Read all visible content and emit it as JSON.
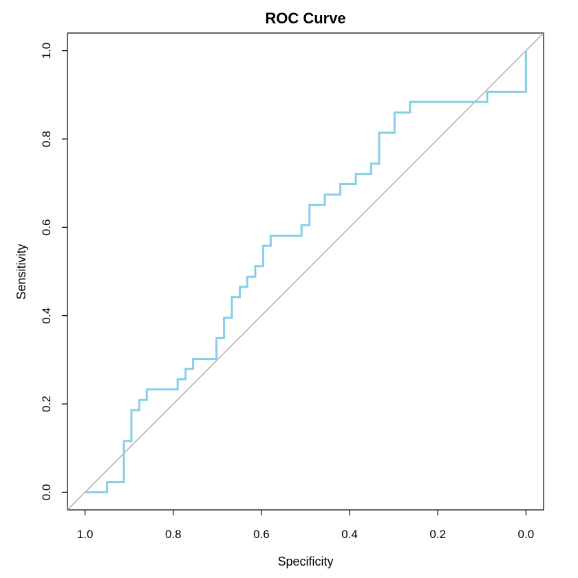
{
  "chart_data": {
    "type": "line",
    "title": "ROC Curve",
    "xlabel": "Specificity",
    "ylabel": "Sensitivity",
    "x_reversed": true,
    "xlim": [
      1.04,
      -0.04
    ],
    "ylim": [
      -0.04,
      1.04
    ],
    "xticks": [
      1.0,
      0.8,
      0.6,
      0.4,
      0.2,
      0.0
    ],
    "xtick_labels": [
      "1.0",
      "0.8",
      "0.6",
      "0.4",
      "0.2",
      "0.0"
    ],
    "yticks": [
      0.0,
      0.2,
      0.4,
      0.6,
      0.8,
      1.0
    ],
    "ytick_labels": [
      "0.0",
      "0.2",
      "0.4",
      "0.6",
      "0.8",
      "1.0"
    ],
    "grid": false,
    "diagonal_color": "#aaaaaa",
    "series": [
      {
        "color": "#87ceeb",
        "points": [
          [
            1.0,
            0.0
          ],
          [
            0.95,
            0.0
          ],
          [
            0.95,
            0.023
          ],
          [
            0.912,
            0.023
          ],
          [
            0.912,
            0.116
          ],
          [
            0.895,
            0.116
          ],
          [
            0.895,
            0.186
          ],
          [
            0.877,
            0.186
          ],
          [
            0.877,
            0.209
          ],
          [
            0.86,
            0.209
          ],
          [
            0.86,
            0.233
          ],
          [
            0.79,
            0.233
          ],
          [
            0.79,
            0.256
          ],
          [
            0.772,
            0.256
          ],
          [
            0.772,
            0.279
          ],
          [
            0.755,
            0.279
          ],
          [
            0.755,
            0.302
          ],
          [
            0.702,
            0.302
          ],
          [
            0.702,
            0.349
          ],
          [
            0.685,
            0.349
          ],
          [
            0.685,
            0.395
          ],
          [
            0.667,
            0.395
          ],
          [
            0.667,
            0.442
          ],
          [
            0.649,
            0.442
          ],
          [
            0.649,
            0.465
          ],
          [
            0.632,
            0.465
          ],
          [
            0.632,
            0.488
          ],
          [
            0.614,
            0.488
          ],
          [
            0.614,
            0.512
          ],
          [
            0.596,
            0.512
          ],
          [
            0.596,
            0.558
          ],
          [
            0.579,
            0.558
          ],
          [
            0.579,
            0.581
          ],
          [
            0.509,
            0.581
          ],
          [
            0.509,
            0.605
          ],
          [
            0.491,
            0.605
          ],
          [
            0.491,
            0.651
          ],
          [
            0.456,
            0.651
          ],
          [
            0.456,
            0.674
          ],
          [
            0.421,
            0.674
          ],
          [
            0.421,
            0.698
          ],
          [
            0.386,
            0.698
          ],
          [
            0.386,
            0.721
          ],
          [
            0.351,
            0.721
          ],
          [
            0.351,
            0.744
          ],
          [
            0.333,
            0.744
          ],
          [
            0.333,
            0.814
          ],
          [
            0.298,
            0.814
          ],
          [
            0.298,
            0.86
          ],
          [
            0.263,
            0.86
          ],
          [
            0.263,
            0.884
          ],
          [
            0.088,
            0.884
          ],
          [
            0.088,
            0.907
          ],
          [
            0.0,
            0.907
          ],
          [
            0.0,
            1.0
          ]
        ]
      }
    ]
  }
}
